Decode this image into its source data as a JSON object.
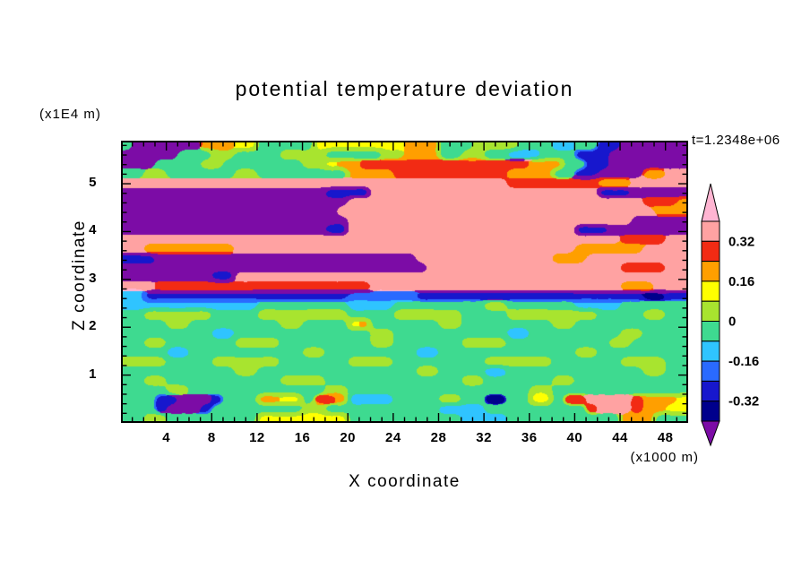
{
  "chart_data": {
    "type": "heatmap",
    "title": "potential temperature deviation",
    "time_label": "t=1.2348e+06",
    "xlabel": "X coordinate",
    "x_unit": "(x1000 m)",
    "ylabel": "Z coordinate",
    "y_unit": "(x1E4 m)",
    "x_range": [
      0,
      50
    ],
    "z_range": [
      0,
      5.9
    ],
    "x_ticks": [
      4,
      8,
      12,
      16,
      20,
      24,
      28,
      32,
      36,
      40,
      44,
      48
    ],
    "z_ticks": [
      1,
      2,
      3,
      4,
      5
    ],
    "colorbar": {
      "tick_labels": [
        "0.32",
        "0.16",
        "0",
        "-0.16",
        "-0.32"
      ],
      "segment_keys_top_to_bottom": [
        "S",
        "R",
        "O",
        "L",
        "Y",
        "G",
        "C",
        "B",
        "N",
        "D"
      ],
      "arrow_top_key": "K",
      "arrow_bottom_key": "P"
    },
    "palette": {
      "K": {
        "color": "#ffb5d2",
        "range": "> 0.40"
      },
      "S": {
        "color": "#ffa2a2",
        "range": "0.32 to 0.40"
      },
      "R": {
        "color": "#f22b14",
        "range": "0.24 to 0.32"
      },
      "O": {
        "color": "#ff9f00",
        "range": "0.16 to 0.24"
      },
      "L": {
        "color": "#ffff00",
        "range": "0.08 to 0.16"
      },
      "Y": {
        "color": "#a8e42f",
        "range": "0.00 to 0.08"
      },
      "G": {
        "color": "#3eda90",
        "range": "-0.08 to 0.00"
      },
      "C": {
        "color": "#2fc4ff",
        "range": "-0.16 to -0.08"
      },
      "B": {
        "color": "#2a6aff",
        "range": "-0.24 to -0.16"
      },
      "N": {
        "color": "#1717cd",
        "range": "-0.32 to -0.24"
      },
      "D": {
        "color": "#00008c",
        "range": "-0.40 to -0.32"
      },
      "P": {
        "color": "#7c0ca6",
        "range": "< -0.40"
      }
    },
    "grid_legend": "Rows top-to-bottom span z = 5.9 down to 0 (x1E4 m); each row's 50 chars span x = 0..50 (x1000 m); letters are palette keys for potential temperature deviation bands.",
    "grid_rows_top_to_bottom": [
      "GPPPPPPOOOLLGGGGGLLLLLLLLOOOGGGYYYYGGGCCGGNNPPPPPP",
      "PPPPPGGGYYGGGGYYYYGGGGGYYOOOGGYYGGCCCGGGNNNPPPPPPP",
      "PPPGGGGYYGGGGGGGYYLOORRRRRRRRRRRRRRROOOGGNNPPPPPPP",
      "GGYYGGGGGGYYGGGGGGGGOOOORRRRRRRRRROOOOGGNNPPPPOOSS",
      "SSSSSSSSSSSSSSSSSSSSSSSSSSSSSSSSSSRRRRRRRROOOSSSSS",
      "PPPPPPPPPPPPPPPPPPNNNNSSSSSSSSSSSSSSSSSSSSNNNPPPPP",
      "PPPPPPPPPPPPPPPPPPPPSSSSSSSSSSSSSSSSSSSSSSSSSSRRRO",
      "PPPPPPPPPPPPPPPPPPPSSSSSSSSSSSSSSSSSSSSSSSSSSSSOOO",
      "PPPPPPPPPPPPPPPPPPPPSSSSSSSSSSSSSSSSSSSSSSSSSPPPPP",
      "PPPPPPPPPPPPPPPPPPNNSSSSSSSSSSSSSSSSSSSSNNNPPPPPPP",
      "SSSSSSSSSSSSSSSSSSSSSSSSSSSSSSSSSSSSSSSSSSSSRRRRSS",
      "SSOOOOOOOOSSSSSSSSSSSSSSSSSSSSSSSSSSSSSSOOOOOOSSSS",
      "NNNPPPPPPPPPPPPPPPPPPPPPPPSSSSSSSSSSSSOOOSSSSSSSSS",
      "PPPPPPPPPPPPPPPPPPPPPPPPPPPSSSSSSSSSSSSSSSSSRRRRSS",
      "PPPPPPPPNNSSSSSSSSSSSSSSSSSSSSSSSSSSSSSSSSSSSSSSSS",
      "SSSRRRRRRRRRRRRRRRRRRRSSSSSSSSSSSSSSSSSSSSSSOOOSSS",
      "CCNNNNNNNNNNNNNNNNNNBBBBBBNNNNNNNNNNNNNNNNNNNNDDNN",
      "CCCCCCCCCCCCGGGGGGGGCCCCGGGGGGGGYYGGGGGGCCCCGGGGGG",
      "GGYYYYYYGGGGYYYYYYYYGGGGYYYYYYGGGGYYYYYYYYGGGGYYGG",
      "GGGGYYGGGGGGGGYYGGGGLOGGGGGGYYGGGGGGGGYYGGGGGGGGGG",
      "GGGGGGGGCCGGGGGGGGGGGGYYGGGGGGGGGGCCGGGGGGGGYYGGGG",
      "GGYYGGGGGGYYYYGGGGGGGGYYGGGGGGYYYYGGGGGGGGGYYGGGGG",
      "GGGGCCGGGGGGGGGGYYGGGGGGGGCCGGGGGGGGGGGGYYGGGGGGGG",
      "YYYYGGGGYYYYYYGGGGGGYYYYGGGGGGGGYYYYYYGGGGGGYYYYGG",
      "GGGGGGGGGGYYGGGGGGGGGGGGGGYYGGGGCCGGGGGGGGGGGGYYGG",
      "GGYYGGGGGGGGGGYYYYGGGGGGGGGGGGYYGGGGGGYYGGGGGGGGGG",
      "GGGGYYGGGGGGGGGGGGYYGGGGGGGGGGGGGGGGYYGGGGGGGGGGGG",
      "GGGNNPPPNGGGOOLLGRROCCCCGGGGYYGGDDGGLLGRRSSSSROOOL",
      "GGGNPPPNGGGGGGGGYYGGGGGGGGGGCCCCGGGGGGGGGRSSSROOLL",
      "GGYYGGGGGGGGLLLLLLLLGGGGGGGGGGCCCCGGGGGGGGGGOOOGGG"
    ]
  }
}
